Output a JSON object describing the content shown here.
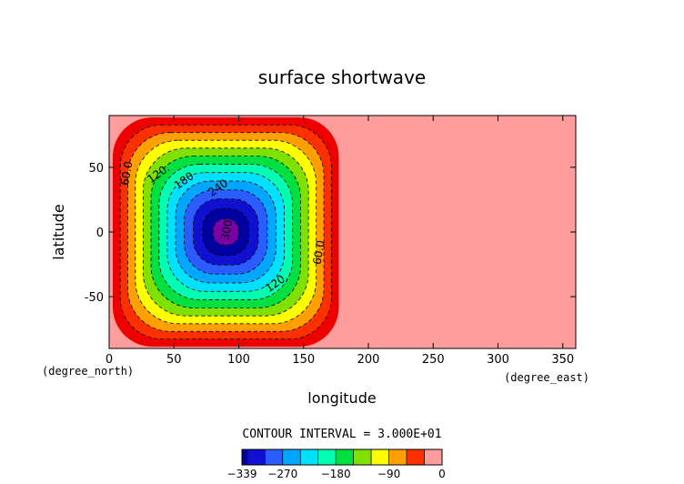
{
  "chart_data": {
    "type": "heatmap",
    "title": "surface shortwave",
    "xlabel": "longitude",
    "ylabel": "latitude",
    "x_unit_label": "(degree_east)",
    "y_unit_label": "(degree_north)",
    "xlim": [
      0,
      360
    ],
    "ylim": [
      -90,
      90
    ],
    "x_ticks": [
      0,
      50,
      100,
      150,
      200,
      250,
      300,
      350
    ],
    "y_ticks": [
      -50,
      0,
      50
    ],
    "field": {
      "description": "negative well centered near lon 90, lat 0; zero elsewhere",
      "min": -339,
      "max": 0,
      "center": [
        90,
        0
      ],
      "region_lon": [
        0,
        180
      ],
      "region_lat": [
        -90,
        90
      ]
    },
    "contour_interval_text": "CONTOUR INTERVAL = 3.000E+01",
    "contour_interval": 30,
    "contour_labels": [
      "60.0",
      "120.",
      "180",
      "240",
      "300",
      "60.0",
      "120."
    ],
    "colorbar": {
      "levels": [
        -339,
        -330,
        -300,
        -270,
        -240,
        -210,
        -180,
        -150,
        -120,
        -90,
        -60,
        -30,
        0
      ],
      "colors": [
        "#7a00a8",
        "#0000a0",
        "#1010d0",
        "#2a5cff",
        "#00a6ff",
        "#00e0ff",
        "#00ffb0",
        "#00e040",
        "#80e000",
        "#ffff00",
        "#ffa000",
        "#ff3000",
        "#ee0000",
        "#ff9c9c"
      ],
      "tick_labels": [
        "-339",
        "-270",
        "-180",
        "-90",
        "0"
      ],
      "tick_values": [
        -339,
        -270,
        -180,
        -90,
        0
      ]
    }
  }
}
